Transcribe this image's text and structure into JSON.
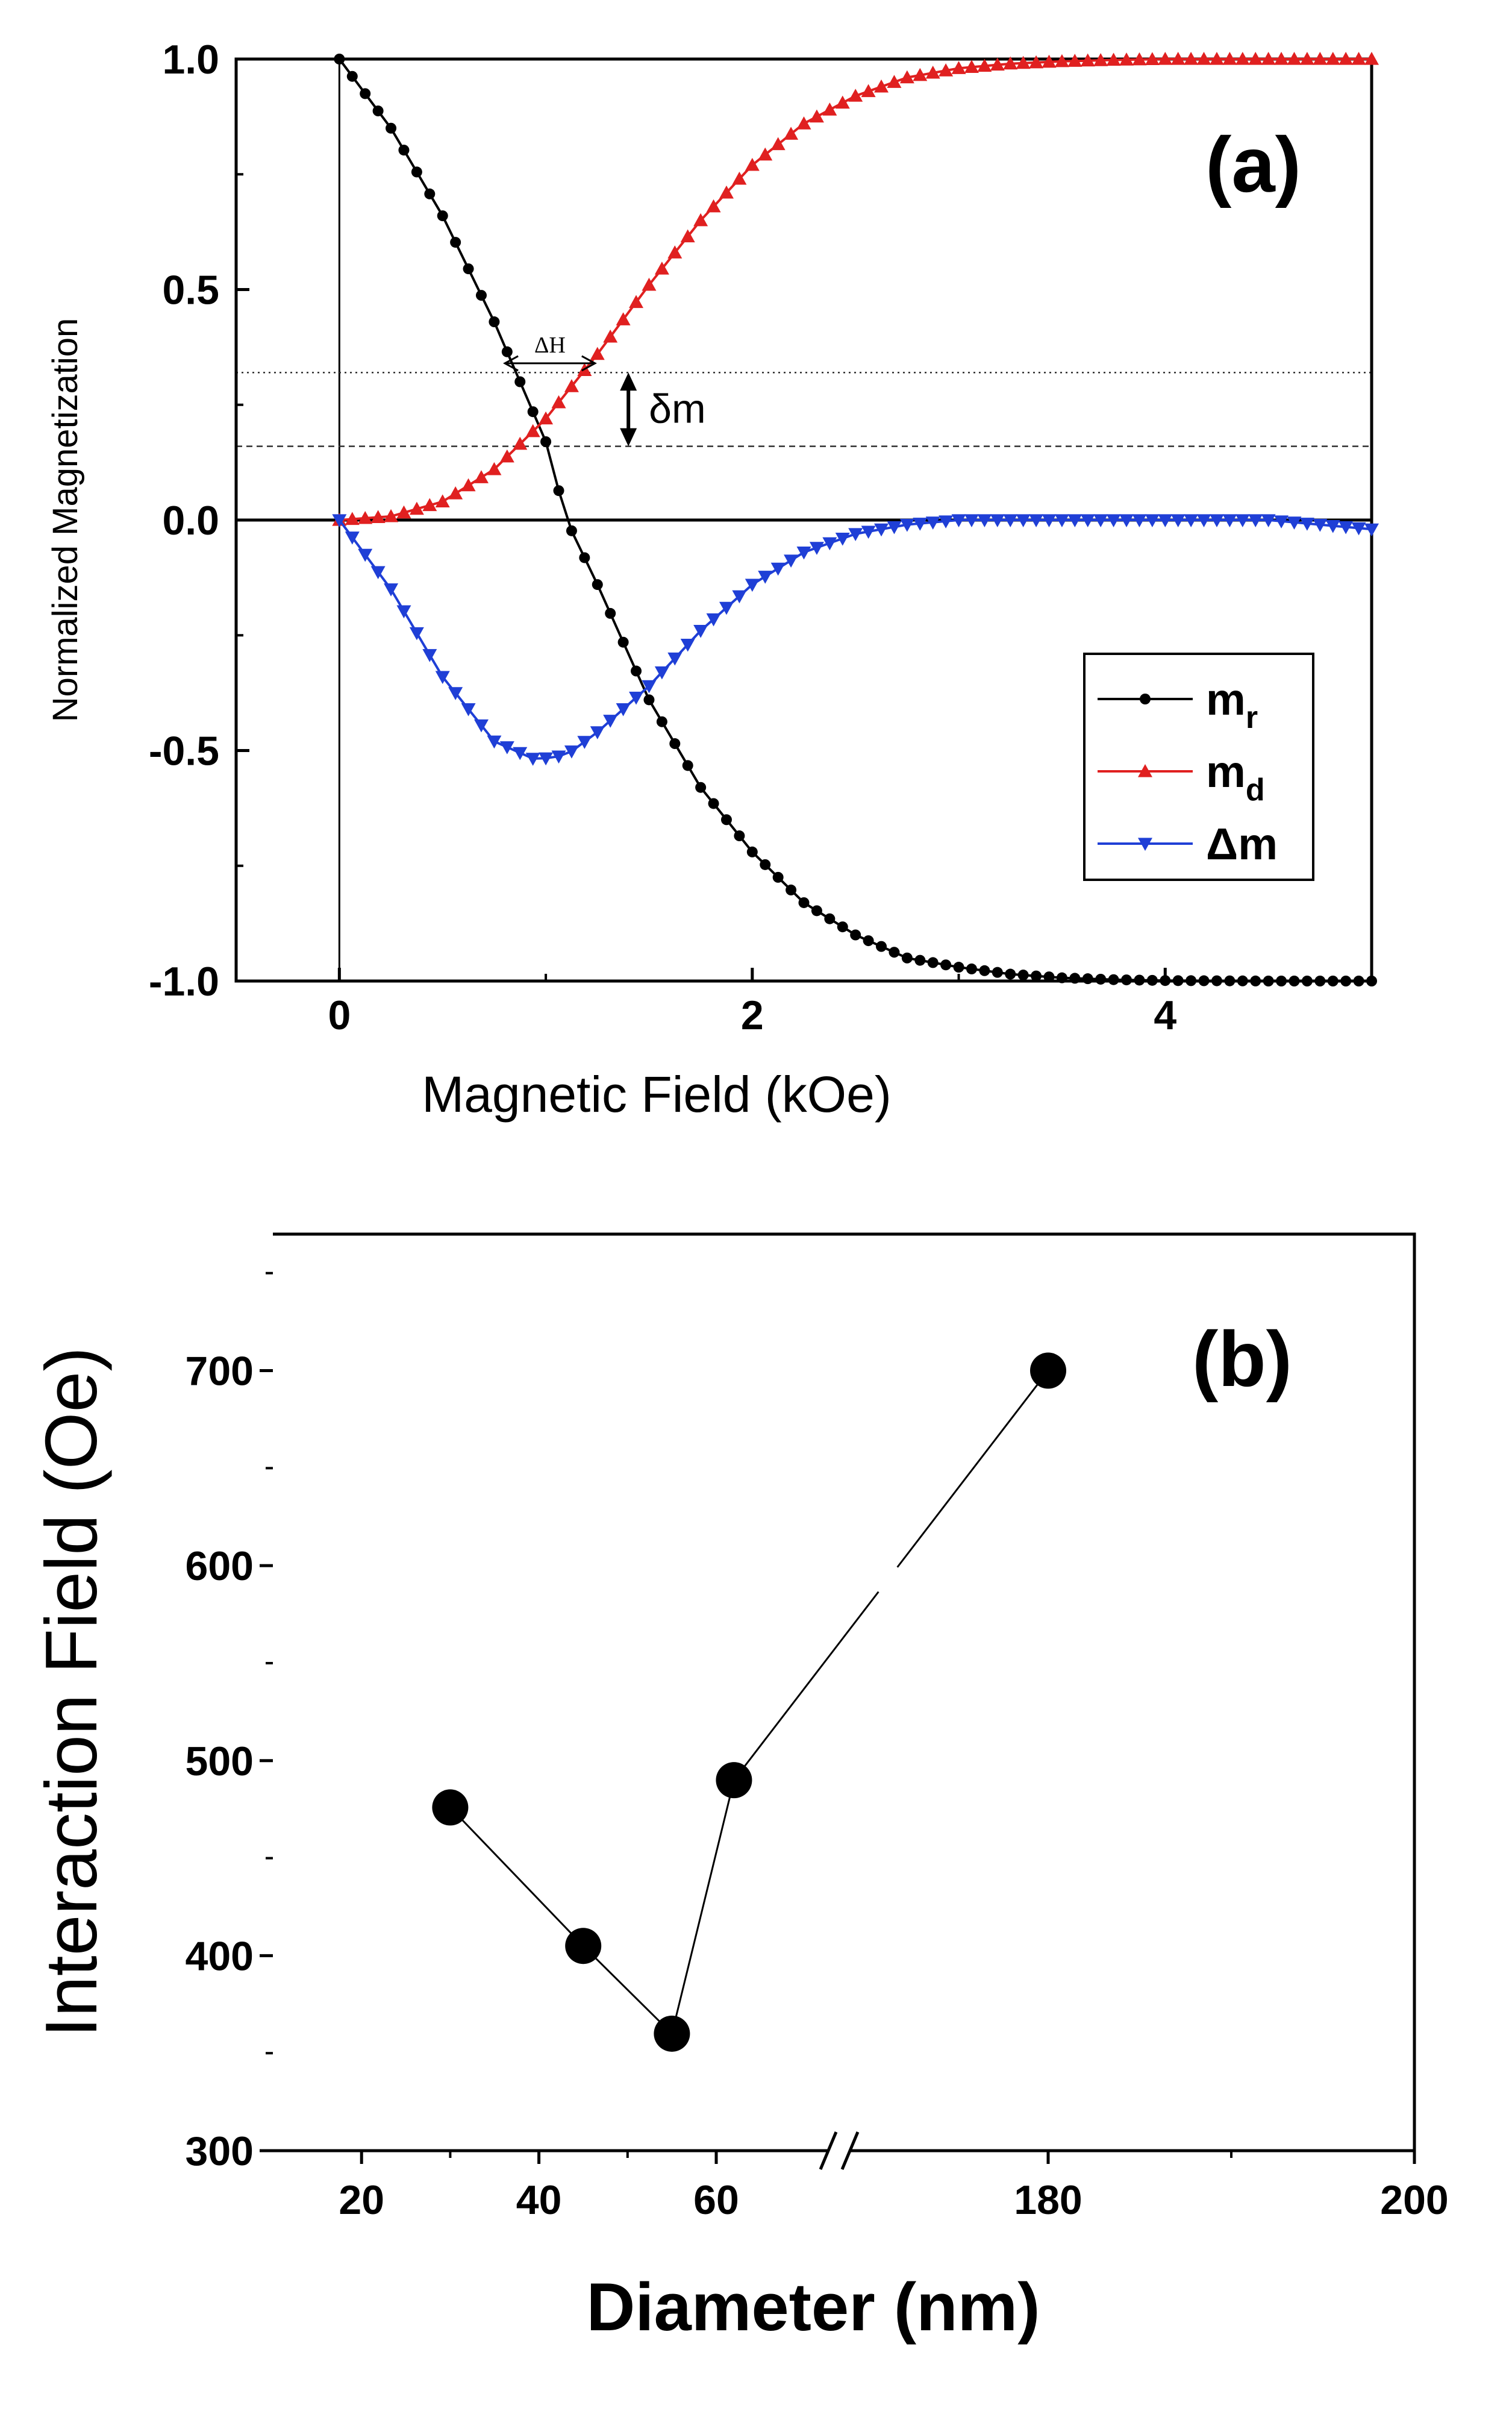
{
  "chart_data": [
    {
      "panel": "(a)",
      "type": "line",
      "xlabel": "Magnetic Field (kOe)",
      "ylabel": "Normalized Magnetization",
      "xlim": [
        -0.5,
        5.0
      ],
      "ylim": [
        -1.0,
        1.0
      ],
      "xticks": [
        "0",
        "2",
        "4"
      ],
      "yticks": [
        "1.0",
        "0.5",
        "0.0",
        "-0.5",
        "-1.0"
      ],
      "legend_position": "bottom-right",
      "series": [
        {
          "name": "m_r",
          "label_main": "m",
          "label_sub": "r",
          "color": "#000000",
          "marker": "circle",
          "x": [
            0,
            0.25,
            0.5,
            0.75,
            1.0,
            1.1,
            1.25,
            1.5,
            1.75,
            2.0,
            2.25,
            2.5,
            2.75,
            3.0,
            3.25,
            3.5,
            3.75,
            4.0,
            4.5,
            5.0
          ],
          "y": [
            1.0,
            0.85,
            0.66,
            0.43,
            0.17,
            0.0,
            -0.14,
            -0.39,
            -0.58,
            -0.72,
            -0.83,
            -0.9,
            -0.95,
            -0.97,
            -0.985,
            -0.993,
            -0.997,
            -0.999,
            -1.0,
            -1.0
          ]
        },
        {
          "name": "m_d",
          "label_main": "m",
          "label_sub": "d",
          "color": "#e02020",
          "marker": "triangle-up",
          "x": [
            0,
            0.25,
            0.5,
            0.75,
            1.0,
            1.25,
            1.5,
            1.75,
            2.0,
            2.25,
            2.5,
            2.75,
            3.0,
            3.25,
            3.5,
            3.75,
            4.0,
            4.5,
            5.0
          ],
          "y": [
            0.0,
            0.008,
            0.04,
            0.11,
            0.22,
            0.36,
            0.51,
            0.65,
            0.77,
            0.86,
            0.92,
            0.96,
            0.98,
            0.99,
            0.995,
            0.998,
            1.0,
            1.0,
            1.0
          ]
        },
        {
          "name": "delta_m",
          "label_main": "Δm",
          "label_sub": "",
          "color": "#1f3fd6",
          "marker": "triangle-down",
          "x": [
            0,
            0.25,
            0.5,
            0.75,
            0.95,
            1.1,
            1.25,
            1.5,
            1.75,
            2.0,
            2.25,
            2.5,
            2.75,
            3.0,
            3.25,
            3.5,
            3.75,
            4.0,
            4.25,
            4.5,
            4.75,
            5.0
          ],
          "y": [
            0.0,
            -0.15,
            -0.34,
            -0.48,
            -0.52,
            -0.51,
            -0.46,
            -0.36,
            -0.24,
            -0.14,
            -0.07,
            -0.03,
            -0.01,
            0.0,
            0.0,
            0.0,
            0.0,
            0.0,
            0.0,
            0.0,
            -0.01,
            -0.02
          ]
        }
      ],
      "annotations": [
        {
          "text": "ΔH",
          "type": "double-arrow-horizontal",
          "from": [
            0.79,
            0.34
          ],
          "to": [
            1.25,
            0.34
          ]
        },
        {
          "text": "δm",
          "type": "double-arrow-vertical",
          "x": 1.4,
          "from_y": 0.32,
          "to_y": 0.16
        },
        {
          "type": "dotted-reference-line",
          "y": 0.32
        },
        {
          "type": "dashed-reference-line",
          "y": 0.16
        },
        {
          "type": "zero-lines",
          "x": 0,
          "y": 0
        }
      ]
    },
    {
      "panel": "(b)",
      "type": "scatter",
      "xlabel": "Diameter (nm)",
      "ylabel": "Interaction Field (Oe)",
      "axis_break": "between 70 and 170",
      "xticks": [
        "20",
        "40",
        "60",
        "180",
        "200"
      ],
      "yticks": [
        "300",
        "400",
        "500",
        "600",
        "700"
      ],
      "ylim": [
        300,
        770
      ],
      "x": [
        30,
        45,
        55,
        62,
        180
      ],
      "y": [
        476,
        405,
        360,
        490,
        700
      ],
      "connected": true,
      "color": "#000000"
    }
  ]
}
